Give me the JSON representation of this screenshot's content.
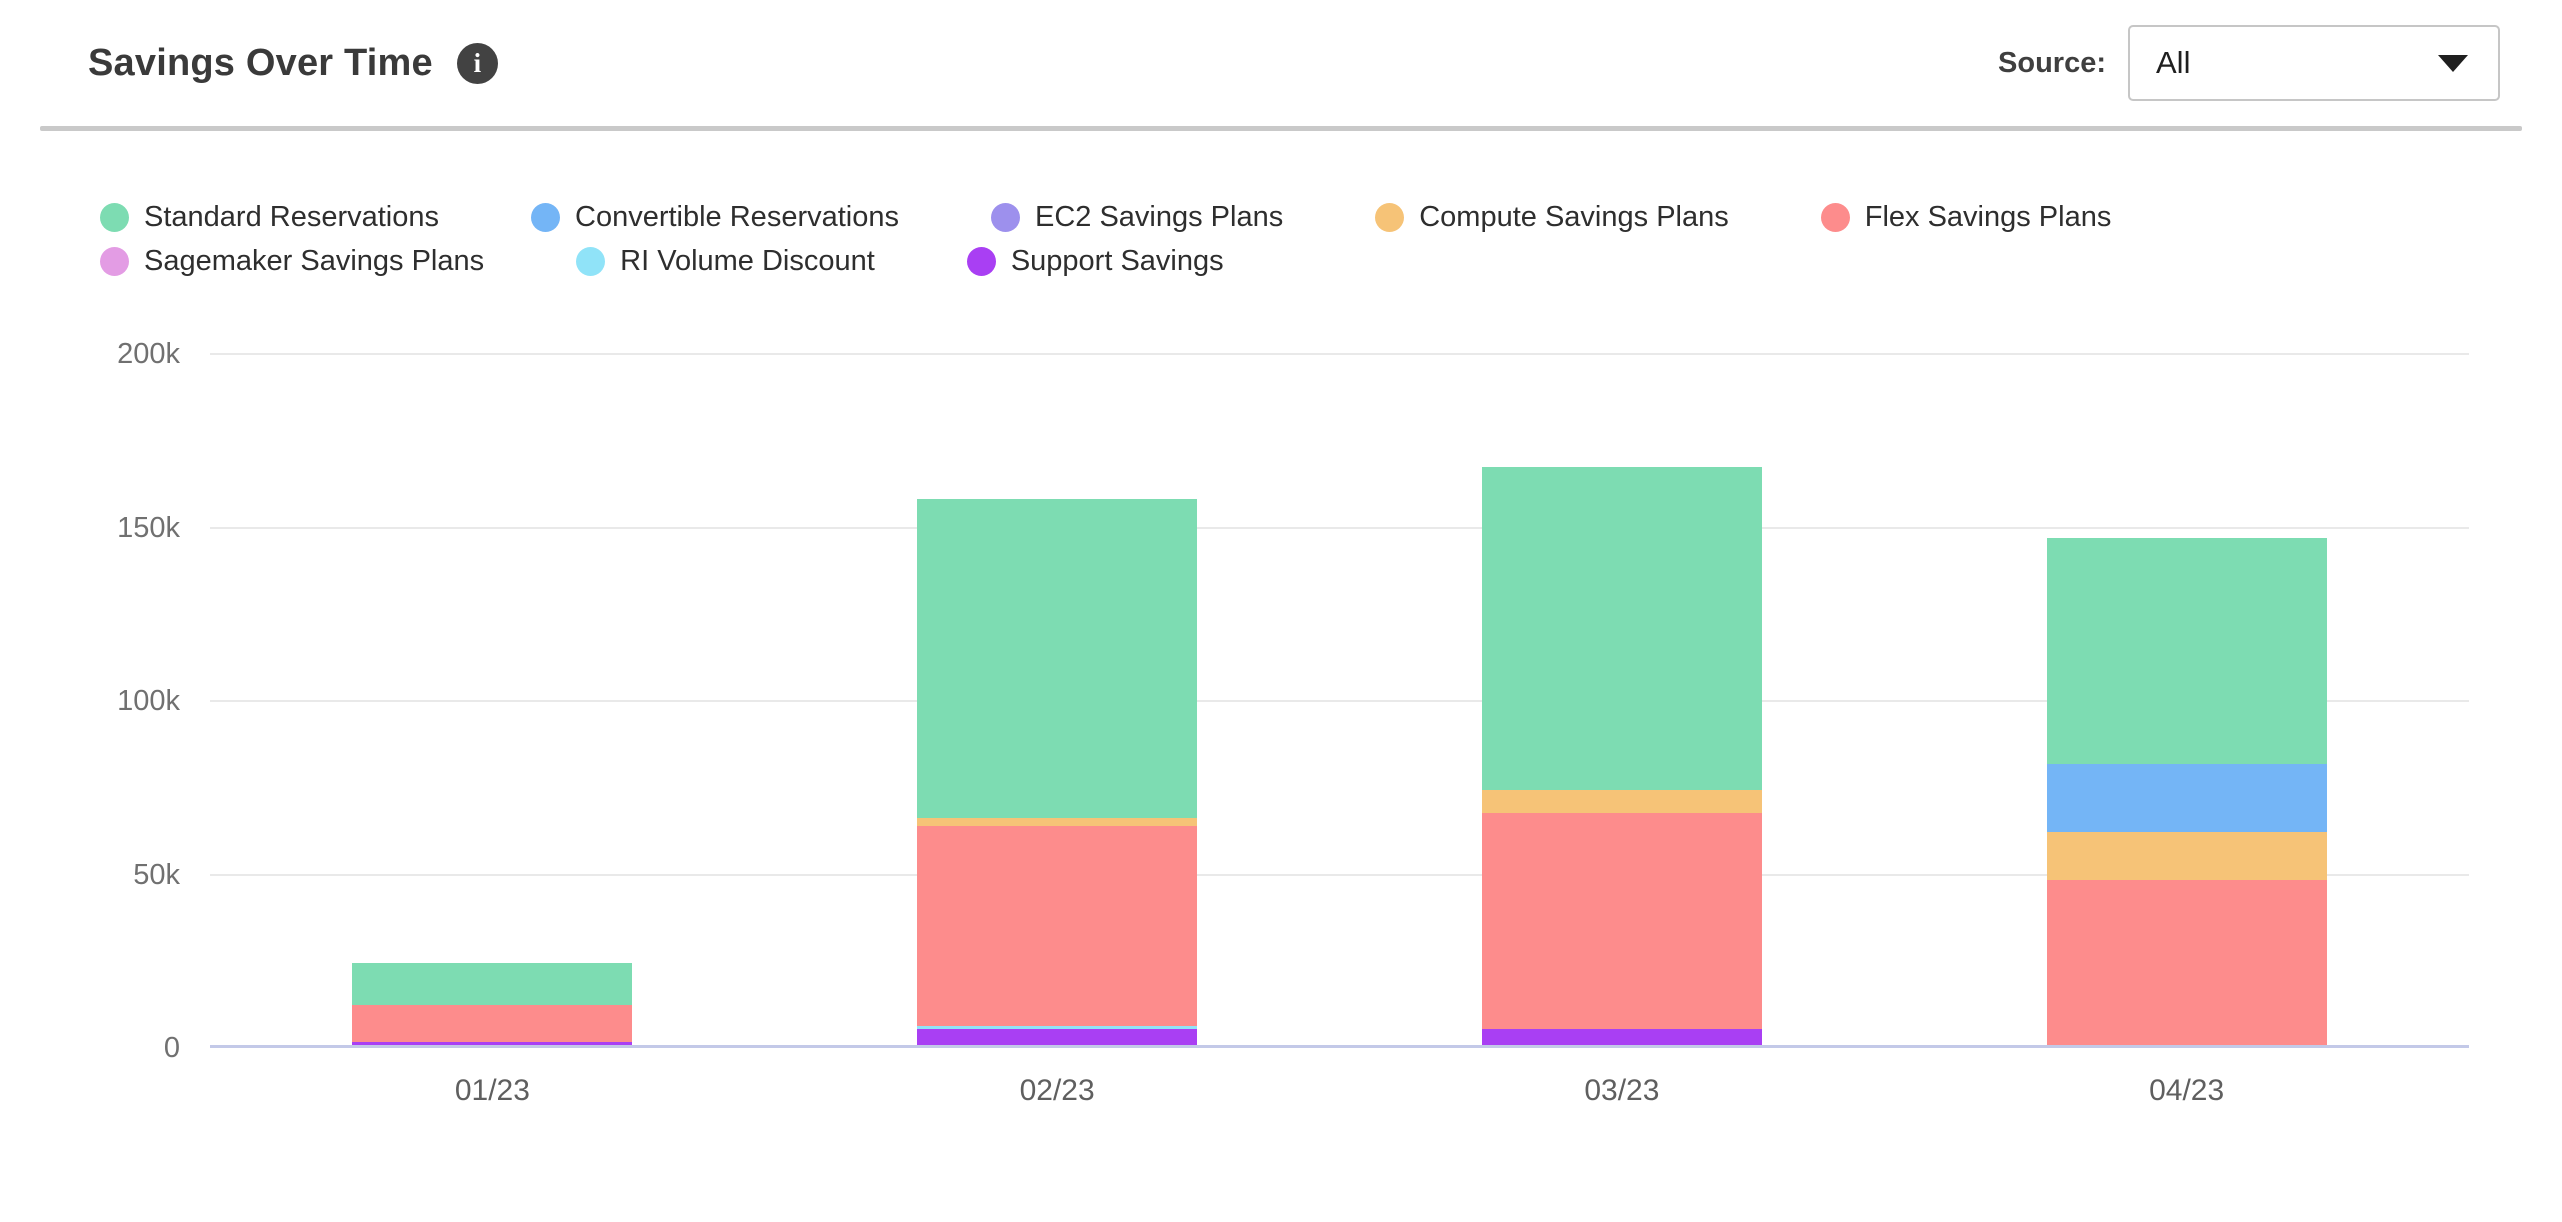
{
  "header": {
    "title": "Savings Over Time",
    "info_icon_glyph": "i",
    "source_label": "Source:",
    "source_value": "All"
  },
  "chart_data": {
    "type": "bar",
    "stacked": true,
    "title": "Savings Over Time",
    "categories": [
      "01/23",
      "02/23",
      "03/23",
      "04/23"
    ],
    "series": [
      {
        "name": "Standard Reservations",
        "color": "#7ddcb2",
        "values": [
          12000,
          92000,
          93000,
          65000
        ]
      },
      {
        "name": "Convertible Reservations",
        "color": "#74b5f6",
        "values": [
          0,
          0,
          0,
          19500
        ]
      },
      {
        "name": "EC2 Savings Plans",
        "color": "#9d90ed",
        "values": [
          0,
          0,
          0,
          0
        ]
      },
      {
        "name": "Compute Savings Plans",
        "color": "#f6c377",
        "values": [
          0,
          2500,
          6500,
          14000
        ]
      },
      {
        "name": "Flex Savings Plans",
        "color": "#fd8c8c",
        "values": [
          10500,
          57500,
          62500,
          47500
        ]
      },
      {
        "name": "Sagemaker Savings Plans",
        "color": "#e39ce4",
        "values": [
          0,
          0,
          0,
          0
        ]
      },
      {
        "name": "RI Volume Discount",
        "color": "#90e3f8",
        "values": [
          0,
          1000,
          0,
          0
        ]
      },
      {
        "name": "Support Savings",
        "color": "#a93ff3",
        "values": [
          1000,
          4500,
          4500,
          0
        ]
      }
    ],
    "stack_order_bottom_to_top": [
      "Support Savings",
      "RI Volume Discount",
      "Sagemaker Savings Plans",
      "Flex Savings Plans",
      "Compute Savings Plans",
      "EC2 Savings Plans",
      "Convertible Reservations",
      "Standard Reservations"
    ],
    "totals": [
      23500,
      157500,
      166500,
      146000
    ],
    "xlabel": "",
    "ylabel": "",
    "ylim": [
      0,
      200000
    ],
    "yticks": [
      {
        "value": 0,
        "label": "0"
      },
      {
        "value": 50000,
        "label": "50k"
      },
      {
        "value": 100000,
        "label": "100k"
      },
      {
        "value": 150000,
        "label": "150k"
      },
      {
        "value": 200000,
        "label": "200k"
      }
    ],
    "grid": true,
    "legend_position": "top-left",
    "axis_line_color": "#c3c9e8",
    "gridline_color": "#e9e9e9"
  }
}
